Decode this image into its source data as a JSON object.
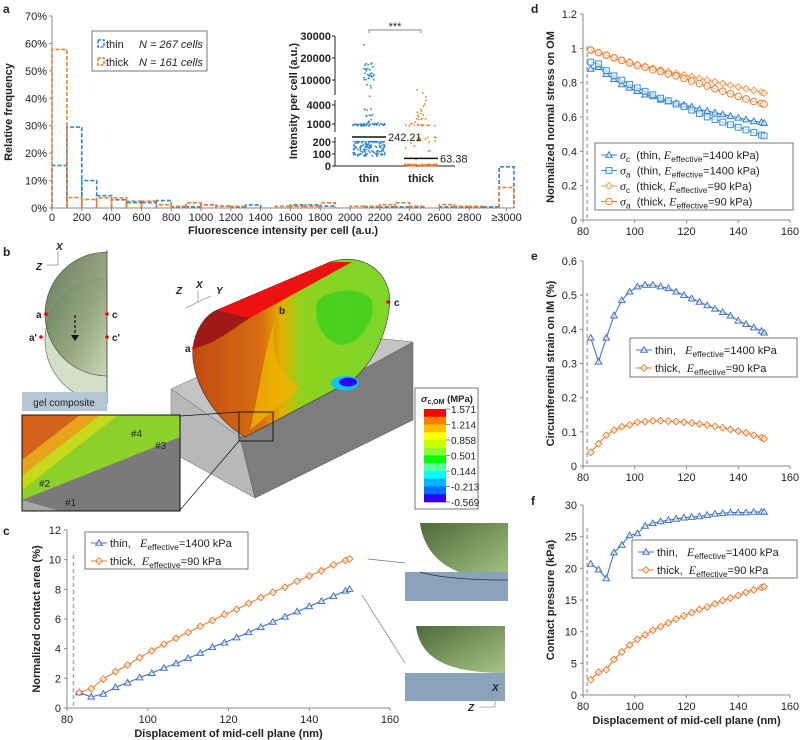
{
  "panel_letters": [
    "a",
    "b",
    "c",
    "d",
    "e",
    "f"
  ],
  "colors": {
    "thin": "#4472c4",
    "thin_hist": "#2f86d0",
    "thin_sq": "#3d8fd8",
    "thick": "#ed7d31",
    "median": "#111111"
  },
  "chart_data": [
    {
      "panel": "a",
      "type": "bar",
      "style": "dashed step histogram",
      "xlabel": "Fluorescence intensity per cell (a.u.)",
      "ylabel": "Relative frequency",
      "ylim": [
        0,
        70
      ],
      "yticks": [
        "0%",
        "10%",
        "20%",
        "30%",
        "40%",
        "50%",
        "60%",
        "70%"
      ],
      "xticks": [
        "0",
        "200",
        "400",
        "600",
        "800",
        "1000",
        "1200",
        "1400",
        "1600",
        "1800",
        "2000",
        "2200",
        "2400",
        "2600",
        "2800",
        "≥3000"
      ],
      "bin_width": 100,
      "categories": [
        "0-100",
        "100-200",
        "200-300",
        "300-400",
        "400-500",
        "500-600",
        "600-700",
        "700-800",
        "800-900",
        "900-1000",
        "1000-1100",
        "1100-1200",
        "1200-1300",
        "1300-1400",
        "1400-1500",
        "1500-1600",
        "1600-1700",
        "1700-1800",
        "1800-1900",
        "1900-2000",
        "2000-2100",
        "2100-2200",
        "2200-2300",
        "2300-2400",
        "2400-2500",
        "2500-2600",
        "2600-2700",
        "2700-2800",
        "2800-2900",
        "2900-3000",
        "≥3000"
      ],
      "series": [
        {
          "name": "thin",
          "n_label": "N = 267 cells",
          "values": [
            15.5,
            29.5,
            10,
            4.5,
            3,
            2,
            2,
            2.7,
            0.4,
            0.4,
            1.1,
            0.7,
            0.4,
            1.1,
            0,
            0,
            1.1,
            1.1,
            0.7,
            0,
            0,
            0.4,
            0.4,
            0.4,
            0.4,
            0,
            0.4,
            0.4,
            0.4,
            0.4,
            15
          ]
        },
        {
          "name": "thick",
          "n_label": "N = 161 cells",
          "values": [
            57.8,
            3.8,
            3.1,
            3.7,
            3.7,
            2.5,
            2.5,
            1.2,
            0.6,
            1.9,
            1.2,
            0.6,
            0.6,
            0,
            0,
            0.6,
            0.6,
            0.6,
            1.9,
            0,
            0.6,
            0.6,
            1.2,
            1.9,
            0.6,
            0,
            1.2,
            0.6,
            0.6,
            0,
            7.5
          ]
        }
      ],
      "legend_position": "top-left"
    },
    {
      "panel": "a-inset",
      "type": "scatter",
      "ylabel": "Intensity per cell (a.u.)",
      "categories": [
        "thin",
        "thick"
      ],
      "yticks": [
        "0",
        "100",
        "200",
        "1000",
        "4000",
        "10000",
        "20000",
        "30000"
      ],
      "axis_breaks": [
        [
          200,
          700
        ],
        [
          4000,
          6000
        ]
      ],
      "medians": [
        242.21,
        63.38
      ],
      "median_labels": [
        "242.21",
        "63.38"
      ],
      "significance": "***"
    },
    {
      "panel": "c",
      "type": "line",
      "xlabel": "Displacement of mid-cell plane (nm)",
      "ylabel": "Normalized contact area (%)",
      "xlim": [
        80,
        160
      ],
      "ylim": [
        0,
        12
      ],
      "xticks": [
        "80",
        "100",
        "120",
        "140",
        "160"
      ],
      "yticks": [
        "0",
        "2",
        "4",
        "6",
        "8",
        "10",
        "12"
      ],
      "reference_line_x": 81.6,
      "x": [
        83,
        86,
        89,
        92,
        95,
        98,
        101,
        104,
        107,
        110,
        113,
        116,
        119,
        122,
        125,
        128,
        131,
        134,
        137,
        140,
        143,
        146,
        149,
        150
      ],
      "series": [
        {
          "name": "thin",
          "marker": "triangle",
          "color": "#4472c4",
          "legend": [
            {
              "t": "thin,   ",
              "s": "n"
            },
            {
              "t": "E",
              "s": "i"
            },
            {
              "t": "effective",
              "s": "sub"
            },
            {
              "t": "=1400 kPa",
              "s": "n"
            }
          ],
          "values": [
            1.05,
            0.75,
            0.95,
            1.4,
            1.7,
            2.05,
            2.35,
            2.7,
            3.0,
            3.35,
            3.7,
            4.1,
            4.4,
            4.75,
            5.1,
            5.45,
            5.8,
            6.15,
            6.5,
            6.85,
            7.2,
            7.55,
            7.9,
            8.0
          ]
        },
        {
          "name": "thick",
          "marker": "diamond",
          "color": "#ed7d31",
          "legend": [
            {
              "t": "thick,  ",
              "s": "n"
            },
            {
              "t": "E",
              "s": "i"
            },
            {
              "t": "effective",
              "s": "sub"
            },
            {
              "t": "=90 kPa",
              "s": "n"
            }
          ],
          "values": [
            1.05,
            1.3,
            1.95,
            2.45,
            2.9,
            3.4,
            3.85,
            4.3,
            4.7,
            5.1,
            5.5,
            5.9,
            6.3,
            6.65,
            7.05,
            7.45,
            7.8,
            8.15,
            8.55,
            8.9,
            9.25,
            9.65,
            9.95,
            10.05
          ]
        }
      ],
      "legend_position": "top-left",
      "axis_labels_inset": [
        "X",
        "Z"
      ]
    },
    {
      "panel": "d",
      "type": "line",
      "xlabel": "",
      "ylabel": "Normalized normal stress on OM",
      "xlim": [
        80,
        160
      ],
      "ylim": [
        0,
        1.2
      ],
      "xticks": [
        "80",
        "100",
        "120",
        "140",
        "160"
      ],
      "yticks": [
        "0",
        "0.2",
        "0.4",
        "0.6",
        "0.8",
        "1",
        "1.2"
      ],
      "reference_line_x": 81.6,
      "x": [
        83,
        86,
        89,
        92,
        95,
        98,
        101,
        104,
        107,
        110,
        113,
        116,
        119,
        122,
        125,
        128,
        131,
        134,
        137,
        140,
        143,
        146,
        149,
        150
      ],
      "series": [
        {
          "name": "sigma_c thin",
          "marker": "triangle",
          "color": "#2f7fd0",
          "legend": [
            {
              "t": "σ",
              "s": "i"
            },
            {
              "t": "c",
              "s": "sub"
            },
            {
              "t": "  (thin, ",
              "s": "n"
            },
            {
              "t": "E",
              "s": "i"
            },
            {
              "t": "effective",
              "s": "sub"
            },
            {
              "t": "=1400 kPa)",
              "s": "n"
            }
          ],
          "values": [
            0.88,
            0.89,
            0.85,
            0.82,
            0.79,
            0.77,
            0.75,
            0.73,
            0.72,
            0.7,
            0.69,
            0.68,
            0.67,
            0.66,
            0.645,
            0.635,
            0.625,
            0.615,
            0.605,
            0.595,
            0.585,
            0.575,
            0.57,
            0.565
          ]
        },
        {
          "name": "sigma_a thin",
          "marker": "square",
          "color": "#3d8fd8",
          "legend": [
            {
              "t": "σ",
              "s": "i"
            },
            {
              "t": "a",
              "s": "sub"
            },
            {
              "t": "  (thin, ",
              "s": "n"
            },
            {
              "t": "E",
              "s": "i"
            },
            {
              "t": "effective",
              "s": "sub"
            },
            {
              "t": "=1400 kPa)",
              "s": "n"
            }
          ],
          "values": [
            0.92,
            0.91,
            0.87,
            0.84,
            0.815,
            0.79,
            0.77,
            0.75,
            0.73,
            0.71,
            0.695,
            0.675,
            0.66,
            0.64,
            0.62,
            0.6,
            0.585,
            0.57,
            0.555,
            0.54,
            0.525,
            0.51,
            0.495,
            0.49
          ]
        },
        {
          "name": "sigma_c thick",
          "marker": "diamond",
          "color": "#f29a55",
          "legend": [
            {
              "t": "σ",
              "s": "i"
            },
            {
              "t": "c",
              "s": "sub"
            },
            {
              "t": "  (thick, ",
              "s": "n"
            },
            {
              "t": "E",
              "s": "i"
            },
            {
              "t": "effective",
              "s": "sub"
            },
            {
              "t": "=90 kPa)",
              "s": "n"
            }
          ],
          "values": [
            0.99,
            0.975,
            0.96,
            0.945,
            0.93,
            0.92,
            0.905,
            0.895,
            0.885,
            0.875,
            0.865,
            0.855,
            0.845,
            0.835,
            0.825,
            0.815,
            0.805,
            0.795,
            0.785,
            0.775,
            0.765,
            0.755,
            0.745,
            0.74
          ]
        },
        {
          "name": "sigma_a thick",
          "marker": "circle",
          "color": "#ed7d31",
          "legend": [
            {
              "t": "σ",
              "s": "i"
            },
            {
              "t": "a",
              "s": "sub"
            },
            {
              "t": "  (thick, ",
              "s": "n"
            },
            {
              "t": "E",
              "s": "i"
            },
            {
              "t": "effective",
              "s": "sub"
            },
            {
              "t": "=90 kPa)",
              "s": "n"
            }
          ],
          "values": [
            0.99,
            0.975,
            0.96,
            0.945,
            0.93,
            0.915,
            0.9,
            0.89,
            0.875,
            0.865,
            0.85,
            0.84,
            0.825,
            0.81,
            0.795,
            0.78,
            0.765,
            0.75,
            0.735,
            0.72,
            0.705,
            0.69,
            0.68,
            0.675
          ]
        }
      ],
      "legend_position": "bottom"
    },
    {
      "panel": "e",
      "type": "line",
      "xlabel": "",
      "ylabel": "Circumferential strain on IM (%)",
      "xlim": [
        80,
        160
      ],
      "ylim": [
        0,
        0.6
      ],
      "xticks": [
        "80",
        "100",
        "120",
        "140",
        "160"
      ],
      "yticks": [
        "0",
        "0.1",
        "0.2",
        "0.3",
        "0.4",
        "0.5",
        "0.6"
      ],
      "reference_line_x": 81.6,
      "x": [
        83,
        86,
        89,
        92,
        95,
        98,
        101,
        104,
        107,
        110,
        113,
        116,
        119,
        122,
        125,
        128,
        131,
        134,
        137,
        140,
        143,
        146,
        149,
        150
      ],
      "series": [
        {
          "name": "thin",
          "marker": "triangle",
          "color": "#4472c4",
          "legend": [
            {
              "t": "thin,   ",
              "s": "n"
            },
            {
              "t": "E",
              "s": "i"
            },
            {
              "t": "effective",
              "s": "sub"
            },
            {
              "t": "=1400 kPa",
              "s": "n"
            }
          ],
          "values": [
            0.375,
            0.305,
            0.375,
            0.44,
            0.485,
            0.51,
            0.525,
            0.53,
            0.53,
            0.525,
            0.52,
            0.51,
            0.5,
            0.49,
            0.48,
            0.47,
            0.46,
            0.45,
            0.44,
            0.425,
            0.415,
            0.405,
            0.395,
            0.39
          ]
        },
        {
          "name": "thick",
          "marker": "diamond",
          "color": "#ed7d31",
          "legend": [
            {
              "t": "thick,  ",
              "s": "n"
            },
            {
              "t": "E",
              "s": "i"
            },
            {
              "t": "effective",
              "s": "sub"
            },
            {
              "t": "=90 kPa",
              "s": "n"
            }
          ],
          "values": [
            0.04,
            0.065,
            0.09,
            0.105,
            0.115,
            0.12,
            0.128,
            0.13,
            0.132,
            0.132,
            0.131,
            0.13,
            0.128,
            0.126,
            0.123,
            0.12,
            0.116,
            0.112,
            0.107,
            0.102,
            0.097,
            0.09,
            0.083,
            0.08
          ]
        }
      ],
      "legend_position": "right"
    },
    {
      "panel": "f",
      "type": "line",
      "xlabel": "Displacement of mid-cell plane (nm)",
      "ylabel": "Contact pressure (kPa)",
      "xlim": [
        80,
        160
      ],
      "ylim": [
        0,
        30
      ],
      "xticks": [
        "80",
        "100",
        "120",
        "140",
        "160"
      ],
      "yticks": [
        "0",
        "5",
        "10",
        "15",
        "20",
        "25",
        "30"
      ],
      "reference_line_x": 81.6,
      "x": [
        83,
        86,
        89,
        92,
        95,
        98,
        101,
        104,
        107,
        110,
        113,
        116,
        119,
        122,
        125,
        128,
        131,
        134,
        137,
        140,
        143,
        146,
        149,
        150
      ],
      "series": [
        {
          "name": "thin",
          "marker": "triangle",
          "color": "#4472c4",
          "legend": [
            {
              "t": "thin,   ",
              "s": "n"
            },
            {
              "t": "E",
              "s": "i"
            },
            {
              "t": "effective",
              "s": "sub"
            },
            {
              "t": "=1400 kPa",
              "s": "n"
            }
          ],
          "values": [
            20.7,
            19.8,
            18.4,
            22.5,
            23.7,
            25.2,
            25.5,
            26.7,
            27.1,
            27.4,
            27.6,
            27.8,
            28.0,
            28.1,
            28.2,
            28.4,
            28.6,
            28.7,
            28.8,
            28.8,
            28.8,
            28.9,
            28.9,
            28.9
          ]
        },
        {
          "name": "thick",
          "marker": "diamond",
          "color": "#ed7d31",
          "legend": [
            {
              "t": "thick,  ",
              "s": "n"
            },
            {
              "t": "E",
              "s": "i"
            },
            {
              "t": "effective",
              "s": "sub"
            },
            {
              "t": "=90 kPa",
              "s": "n"
            }
          ],
          "values": [
            2.4,
            3.6,
            4.0,
            5.6,
            6.8,
            7.9,
            8.8,
            9.5,
            10.2,
            10.8,
            11.4,
            12.0,
            12.5,
            13.0,
            13.5,
            13.9,
            14.4,
            14.9,
            15.3,
            15.7,
            16.2,
            16.6,
            17.0,
            17.1
          ]
        }
      ],
      "legend_position": "right"
    }
  ],
  "panel_b": {
    "axes_left": {
      "x": "X",
      "z": "Z"
    },
    "axes_main": {
      "x": "X",
      "y": "Y",
      "z": "Z"
    },
    "points_left": [
      "a",
      "a'",
      "c",
      "c'"
    ],
    "points_main": [
      "a",
      "b",
      "c"
    ],
    "substrate_label": "gel composite",
    "zoom_points": [
      "#1",
      "#2",
      "#3",
      "#4"
    ],
    "colorbar": {
      "title_symbol": "σ",
      "title_sub": "c,OM",
      "title_unit": " (MPa)",
      "labels": [
        "1.571",
        "1.214",
        "0.858",
        "0.501",
        "0.144",
        "-0.213",
        "-0.569"
      ],
      "colors": [
        "#ff0000",
        "#ff7f00",
        "#ffbf00",
        "#ffff00",
        "#c8ff00",
        "#8cff32",
        "#00ff00",
        "#5affa0",
        "#00ffff",
        "#00b4ff",
        "#006eff",
        "#3200ff"
      ]
    }
  }
}
